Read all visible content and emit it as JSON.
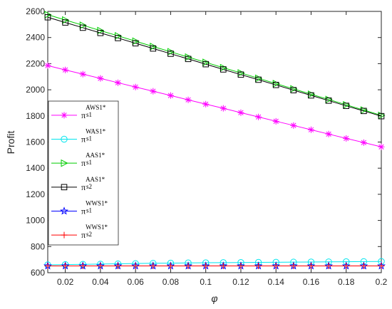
{
  "chart_data": {
    "type": "line",
    "title": "",
    "xlabel": "φ",
    "ylabel": "Profit",
    "xlim": [
      0.01,
      0.2
    ],
    "ylim": [
      600,
      2600
    ],
    "x_ticks": [
      "0.02",
      "0.04",
      "0.06",
      "0.08",
      "0.1",
      "0.12",
      "0.14",
      "0.16",
      "0.18",
      "0.2"
    ],
    "y_ticks": [
      "600",
      "800",
      "1000",
      "1200",
      "1400",
      "1600",
      "1800",
      "2000",
      "2200",
      "2400",
      "2600"
    ],
    "grid": false,
    "legend_position": "left-middle",
    "x": [
      0.01,
      0.02,
      0.03,
      0.04,
      0.05,
      0.06,
      0.07,
      0.08,
      0.09,
      0.1,
      0.11,
      0.12,
      0.13,
      0.14,
      0.15,
      0.16,
      0.17,
      0.18,
      0.19,
      0.2
    ],
    "series": [
      {
        "legend": {
          "pi": "π",
          "sup": "AWS1*",
          "sub": "s1"
        },
        "color": "#ff00ff",
        "marker": "asterisk",
        "values": [
          2185,
          2152,
          2120,
          2087,
          2054,
          2021,
          1989,
          1956,
          1923,
          1890,
          1858,
          1825,
          1792,
          1759,
          1727,
          1694,
          1661,
          1628,
          1596,
          1563
        ]
      },
      {
        "legend": {
          "pi": "π",
          "sup": "WAS1*",
          "sub": "s1"
        },
        "color": "#00e5ee",
        "marker": "circle",
        "values": [
          660,
          662,
          664,
          666,
          668,
          670,
          672,
          673,
          675,
          676,
          677,
          678,
          679,
          680,
          681,
          682,
          683,
          684,
          685,
          686
        ]
      },
      {
        "legend": {
          "pi": "π",
          "sup": "AAS1*",
          "sub": "s1"
        },
        "color": "#00cc00",
        "marker": "triangle-right",
        "values": [
          2575,
          2534,
          2494,
          2453,
          2413,
          2372,
          2331,
          2291,
          2250,
          2210,
          2169,
          2129,
          2088,
          2047,
          2007,
          1966,
          1926,
          1885,
          1845,
          1804
        ]
      },
      {
        "legend": {
          "pi": "π",
          "sup": "AAS1*",
          "sub": "s2"
        },
        "color": "#000000",
        "marker": "square",
        "values": [
          2555,
          2515,
          2475,
          2435,
          2396,
          2356,
          2316,
          2276,
          2236,
          2196,
          2156,
          2116,
          2077,
          2037,
          1997,
          1957,
          1917,
          1877,
          1838,
          1798
        ]
      },
      {
        "legend": {
          "pi": "π",
          "sup": "WWS1*",
          "sub": "s1"
        },
        "color": "#0000ff",
        "marker": "star",
        "values": [
          652,
          652,
          652,
          652,
          652,
          652,
          652,
          652,
          652,
          652,
          652,
          652,
          652,
          652,
          652,
          652,
          652,
          652,
          652,
          652
        ]
      },
      {
        "legend": {
          "pi": "π",
          "sup": "WWS1*",
          "sub": "s2"
        },
        "color": "#ff0000",
        "marker": "plus",
        "values": [
          652,
          652,
          652,
          652,
          652,
          652,
          652,
          652,
          652,
          652,
          652,
          652,
          652,
          652,
          652,
          652,
          652,
          652,
          652,
          652
        ]
      }
    ]
  }
}
